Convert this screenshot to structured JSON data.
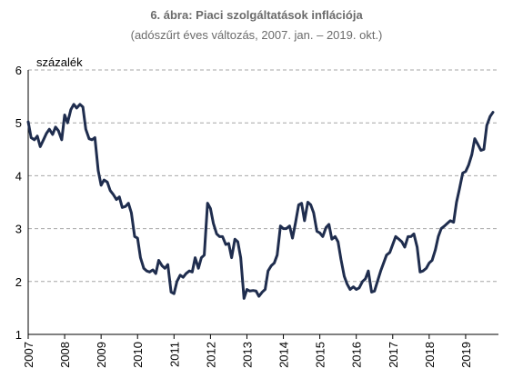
{
  "chart_data": {
    "type": "line",
    "title": "6. ábra: Piaci szolgáltatások inflációja",
    "subtitle": "(adószűrt éves változás, 2007. jan. – 2019. okt.)",
    "ylabel": "százalék",
    "xlabel": "",
    "ylim": [
      1,
      6
    ],
    "yticks": [
      1,
      2,
      3,
      4,
      5,
      6
    ],
    "xlim": [
      2007.0,
      2019.9
    ],
    "xticks": [
      2007,
      2008,
      2009,
      2010,
      2011,
      2012,
      2013,
      2014,
      2015,
      2016,
      2017,
      2018,
      2019
    ],
    "xtick_labels": [
      "2007",
      "2008",
      "2009",
      "2010",
      "2011",
      "2012",
      "2013",
      "2014",
      "2015",
      "2016",
      "2017",
      "2018",
      "2019"
    ],
    "grid": "horizontal dashed",
    "series": [
      {
        "color": "#1f2d4e",
        "x": [
          2007.0,
          2007.08,
          2007.17,
          2007.25,
          2007.33,
          2007.42,
          2007.5,
          2007.58,
          2007.67,
          2007.75,
          2007.83,
          2007.92,
          2008.0,
          2008.08,
          2008.17,
          2008.25,
          2008.33,
          2008.42,
          2008.5,
          2008.58,
          2008.67,
          2008.75,
          2008.83,
          2008.92,
          2009.0,
          2009.08,
          2009.17,
          2009.25,
          2009.33,
          2009.42,
          2009.5,
          2009.58,
          2009.67,
          2009.75,
          2009.83,
          2009.92,
          2010.0,
          2010.08,
          2010.17,
          2010.25,
          2010.33,
          2010.42,
          2010.5,
          2010.58,
          2010.67,
          2010.75,
          2010.83,
          2010.92,
          2011.0,
          2011.08,
          2011.17,
          2011.25,
          2011.33,
          2011.42,
          2011.5,
          2011.58,
          2011.67,
          2011.75,
          2011.83,
          2011.92,
          2012.0,
          2012.08,
          2012.17,
          2012.25,
          2012.33,
          2012.42,
          2012.5,
          2012.58,
          2012.67,
          2012.75,
          2012.83,
          2012.92,
          2013.0,
          2013.08,
          2013.17,
          2013.25,
          2013.33,
          2013.42,
          2013.5,
          2013.58,
          2013.67,
          2013.75,
          2013.83,
          2013.92,
          2014.0,
          2014.08,
          2014.17,
          2014.25,
          2014.33,
          2014.42,
          2014.5,
          2014.58,
          2014.67,
          2014.75,
          2014.83,
          2014.92,
          2015.0,
          2015.08,
          2015.17,
          2015.25,
          2015.33,
          2015.42,
          2015.5,
          2015.58,
          2015.67,
          2015.75,
          2015.83,
          2015.92,
          2016.0,
          2016.08,
          2016.17,
          2016.25,
          2016.33,
          2016.42,
          2016.5,
          2016.58,
          2016.67,
          2016.75,
          2016.83,
          2016.92,
          2017.0,
          2017.08,
          2017.17,
          2017.25,
          2017.33,
          2017.42,
          2017.5,
          2017.58,
          2017.67,
          2017.75,
          2017.83,
          2017.92,
          2018.0,
          2018.08,
          2018.17,
          2018.25,
          2018.33,
          2018.42,
          2018.5,
          2018.58,
          2018.67,
          2018.75,
          2018.83,
          2018.92,
          2019.0,
          2019.08,
          2019.17,
          2019.25,
          2019.33,
          2019.42,
          2019.5,
          2019.58,
          2019.67,
          2019.75
        ],
        "y": [
          5.02,
          4.72,
          4.68,
          4.75,
          4.55,
          4.68,
          4.8,
          4.88,
          4.78,
          4.92,
          4.85,
          4.68,
          5.15,
          5.0,
          5.25,
          5.35,
          5.28,
          5.35,
          5.3,
          4.88,
          4.7,
          4.68,
          4.72,
          4.1,
          3.82,
          3.92,
          3.88,
          3.72,
          3.65,
          3.55,
          3.6,
          3.4,
          3.42,
          3.48,
          3.3,
          2.85,
          2.82,
          2.45,
          2.25,
          2.2,
          2.18,
          2.22,
          2.15,
          2.4,
          2.3,
          2.25,
          2.32,
          1.8,
          1.77,
          2.0,
          2.12,
          2.08,
          2.15,
          2.2,
          2.18,
          2.45,
          2.25,
          2.45,
          2.5,
          3.48,
          3.38,
          3.1,
          2.9,
          2.85,
          2.85,
          2.7,
          2.72,
          2.45,
          2.8,
          2.75,
          2.45,
          1.68,
          1.85,
          1.82,
          1.83,
          1.82,
          1.72,
          1.8,
          1.85,
          2.2,
          2.3,
          2.35,
          2.5,
          3.05,
          3.0,
          3.0,
          3.05,
          2.82,
          3.1,
          3.45,
          3.48,
          3.15,
          3.5,
          3.45,
          3.3,
          2.95,
          2.92,
          2.85,
          3.02,
          3.08,
          2.8,
          2.85,
          2.75,
          2.42,
          2.1,
          1.95,
          1.85,
          1.9,
          1.85,
          1.88,
          2.0,
          2.05,
          2.2,
          1.8,
          1.82,
          2.0,
          2.2,
          2.35,
          2.5,
          2.55,
          2.7,
          2.85,
          2.8,
          2.75,
          2.65,
          2.85,
          2.85,
          2.9,
          2.65,
          2.18,
          2.2,
          2.25,
          2.35,
          2.4,
          2.6,
          2.85,
          3.0,
          3.05,
          3.1,
          3.15,
          3.12,
          3.5,
          3.75,
          4.05,
          4.08,
          4.2,
          4.4,
          4.7,
          4.6,
          4.48,
          4.5,
          4.95,
          5.12,
          5.2
        ]
      }
    ]
  }
}
